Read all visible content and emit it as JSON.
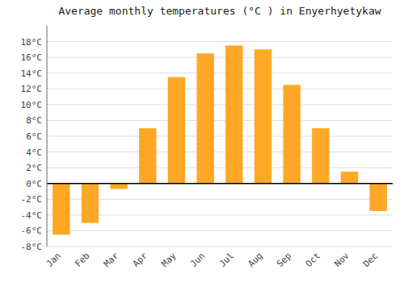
{
  "chart_data": {
    "type": "bar",
    "title": "Average monthly temperatures (°C ) in Enyerhyetykaw",
    "categories": [
      "Jan",
      "Feb",
      "Mar",
      "Apr",
      "May",
      "Jun",
      "Jul",
      "Aug",
      "Sep",
      "Oct",
      "Nov",
      "Dec"
    ],
    "values": [
      -6.5,
      -5.0,
      -0.7,
      7.0,
      13.5,
      16.5,
      17.5,
      17.0,
      12.5,
      7.0,
      1.5,
      -3.5
    ],
    "color": "#FFA726",
    "ylim": [
      -8,
      20
    ],
    "yticks": [
      {
        "value": -8,
        "label": "-8°C"
      },
      {
        "value": -6,
        "label": "-6°C"
      },
      {
        "value": -4,
        "label": "-4°C"
      },
      {
        "value": -2,
        "label": "-2°C"
      },
      {
        "value": 0,
        "label": "0°C"
      },
      {
        "value": 2,
        "label": "2°C"
      },
      {
        "value": 4,
        "label": "4°C"
      },
      {
        "value": 6,
        "label": "6°C"
      },
      {
        "value": 8,
        "label": "8°C"
      },
      {
        "value": 10,
        "label": "10°C"
      },
      {
        "value": 12,
        "label": "12°C"
      },
      {
        "value": 14,
        "label": "14°C"
      },
      {
        "value": 16,
        "label": "16°C"
      },
      {
        "value": 18,
        "label": "18°C"
      }
    ],
    "grid": true
  }
}
